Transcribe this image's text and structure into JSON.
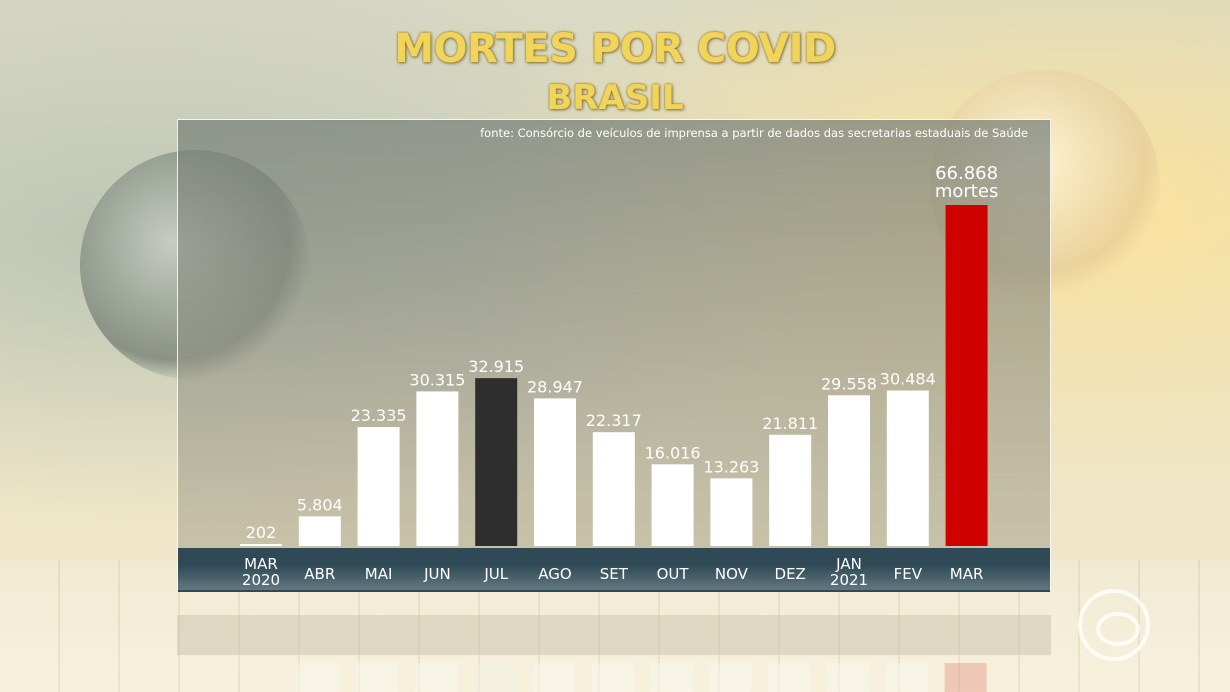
{
  "title": "MORTES POR COVID",
  "subtitle": "BRASIL",
  "source": "fonte: Consórcio de veículos de imprensa a partir de dados das secretarias estaduais de Saúde",
  "chart_data": {
    "type": "bar",
    "title": "MORTES POR COVID",
    "subtitle": "BRASIL",
    "categories": [
      [
        "MAR",
        "2020"
      ],
      [
        "ABR"
      ],
      [
        "MAI"
      ],
      [
        "JUN"
      ],
      [
        "JUL"
      ],
      [
        "AGO"
      ],
      [
        "SET"
      ],
      [
        "OUT"
      ],
      [
        "NOV"
      ],
      [
        "DEZ"
      ],
      [
        "JAN",
        "2021"
      ],
      [
        "FEV"
      ],
      [
        "MAR"
      ]
    ],
    "values": [
      202,
      5804,
      23335,
      30315,
      32915,
      28947,
      22317,
      16016,
      13263,
      21811,
      29558,
      30484,
      66868
    ],
    "value_labels": [
      "202",
      "5.804",
      "23.335",
      "30.315",
      "32.915",
      "28.947",
      "22.317",
      "16.016",
      "13.263",
      "21.811",
      "29.558",
      "30.484",
      "66.868"
    ],
    "last_label_unit": "mortes",
    "bar_colors": [
      "#ffffff",
      "#ffffff",
      "#ffffff",
      "#ffffff",
      "#2e2e2e",
      "#ffffff",
      "#ffffff",
      "#ffffff",
      "#ffffff",
      "#ffffff",
      "#ffffff",
      "#ffffff",
      "#d10000"
    ],
    "ylim": [
      0,
      66868
    ],
    "grid": false,
    "legend": "none"
  },
  "colors": {
    "title": "#f1d45a",
    "axis_bar": "#2f4a56",
    "highlight_max": "#d10000",
    "highlight_peak_2020": "#2e2e2e"
  }
}
